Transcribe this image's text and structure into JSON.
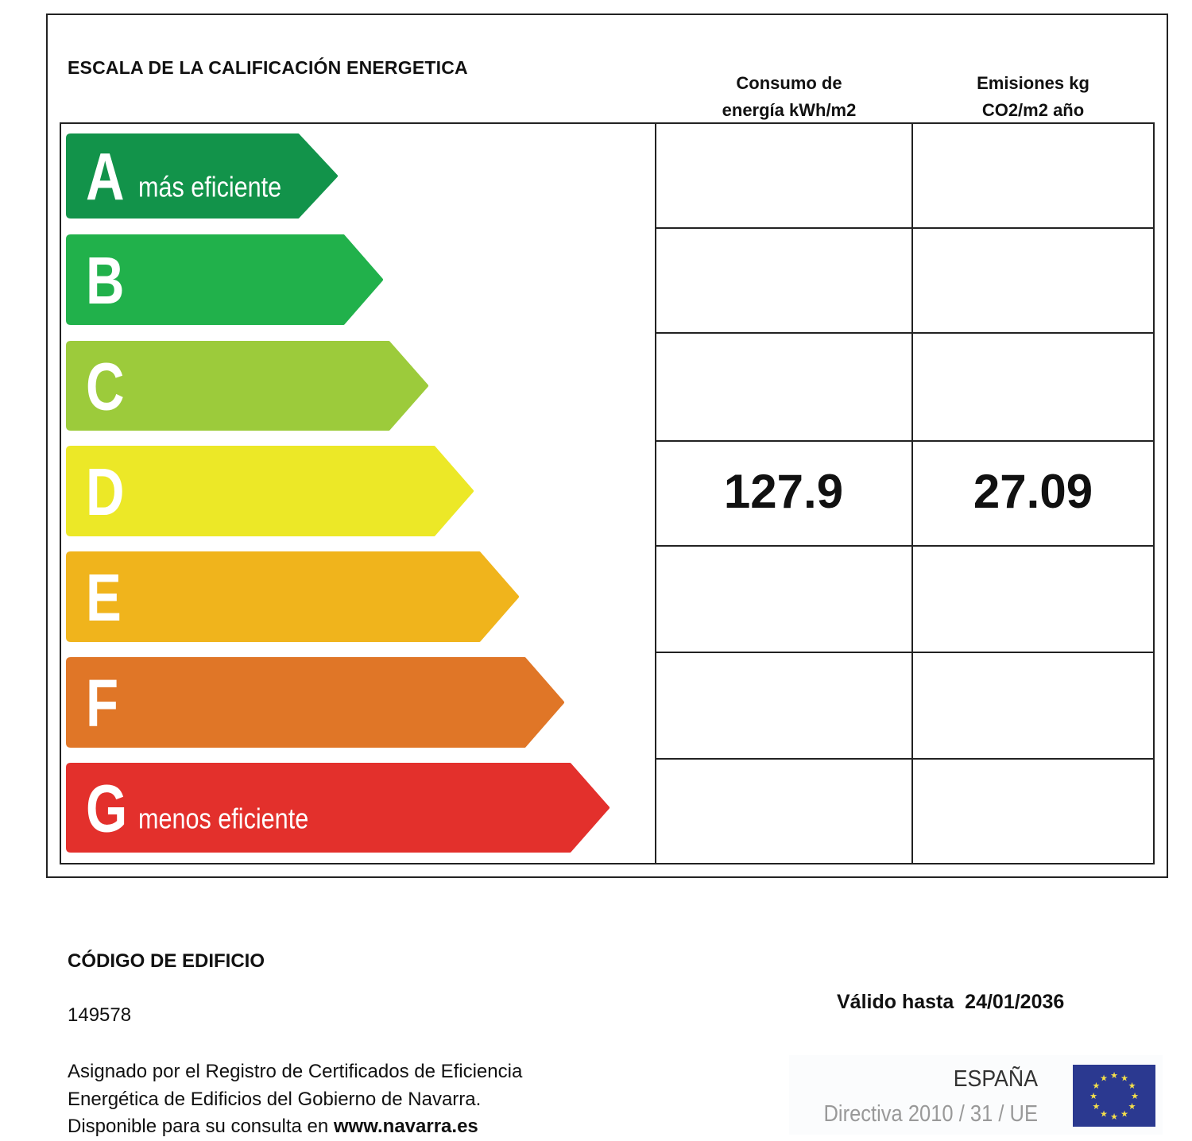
{
  "scale_title": "ESCALA DE LA CALIFICACIÓN ENERGETICA",
  "columns": {
    "consumption_line1": "Consumo de",
    "consumption_line2": "energía kWh/m2",
    "emissions_line1": "Emisiones kg",
    "emissions_line2": "CO2/m2 año"
  },
  "ratings": [
    {
      "letter": "A",
      "caption": "más eficiente",
      "color": "#12934a"
    },
    {
      "letter": "B",
      "caption": "",
      "color": "#21b14b"
    },
    {
      "letter": "C",
      "caption": "",
      "color": "#9ccb3b"
    },
    {
      "letter": "D",
      "caption": "",
      "color": "#ece827"
    },
    {
      "letter": "E",
      "caption": "",
      "color": "#f0b41c"
    },
    {
      "letter": "F",
      "caption": "",
      "color": "#e07627"
    },
    {
      "letter": "G",
      "caption": "menos eficiente",
      "color": "#e3302c"
    }
  ],
  "result": {
    "rating": "D",
    "consumption": "127.9",
    "emissions": "27.09"
  },
  "building_code_label": "CÓDIGO DE EDIFICIO",
  "building_code": "149578",
  "valid_until_label": "Válido hasta",
  "valid_until": "24/01/2036",
  "registry_line1": "Asignado por el Registro de Certificados de Eficiencia",
  "registry_line2": "Energética de Edificios del Gobierno de Navarra.",
  "registry_line3": "Disponible para su consulta en",
  "registry_url": "www.navarra.es",
  "logo": {
    "country": "ESPAÑA",
    "directive": "Directiva 2010 / 31 / UE",
    "flag_color": "#2b3990"
  }
}
